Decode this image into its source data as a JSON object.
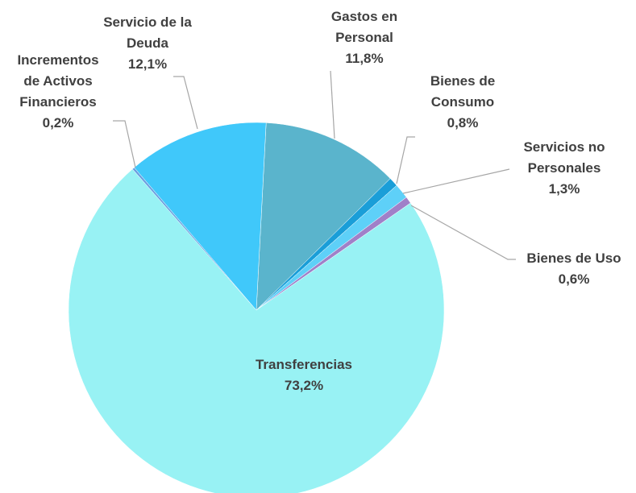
{
  "chart_data": {
    "type": "pie",
    "categories": [
      "Gastos en Personal",
      "Bienes de Consumo",
      "Servicios no Personales",
      "Bienes de Uso",
      "Transferencias",
      "Incrementos de Activos Financieros",
      "Servicio de la Deuda"
    ],
    "values": [
      11.8,
      0.8,
      1.3,
      0.6,
      73.2,
      0.2,
      12.1
    ],
    "value_labels": [
      "11,8%",
      "0,8%",
      "1,3%",
      "0,6%",
      "73,2%",
      "0,2%",
      "12,1%"
    ],
    "colors": [
      "#5ab4cc",
      "#1a9ed8",
      "#5ed0f8",
      "#a080c8",
      "#98f2f4",
      "#6aa0e0",
      "#40c8fa"
    ]
  }
}
